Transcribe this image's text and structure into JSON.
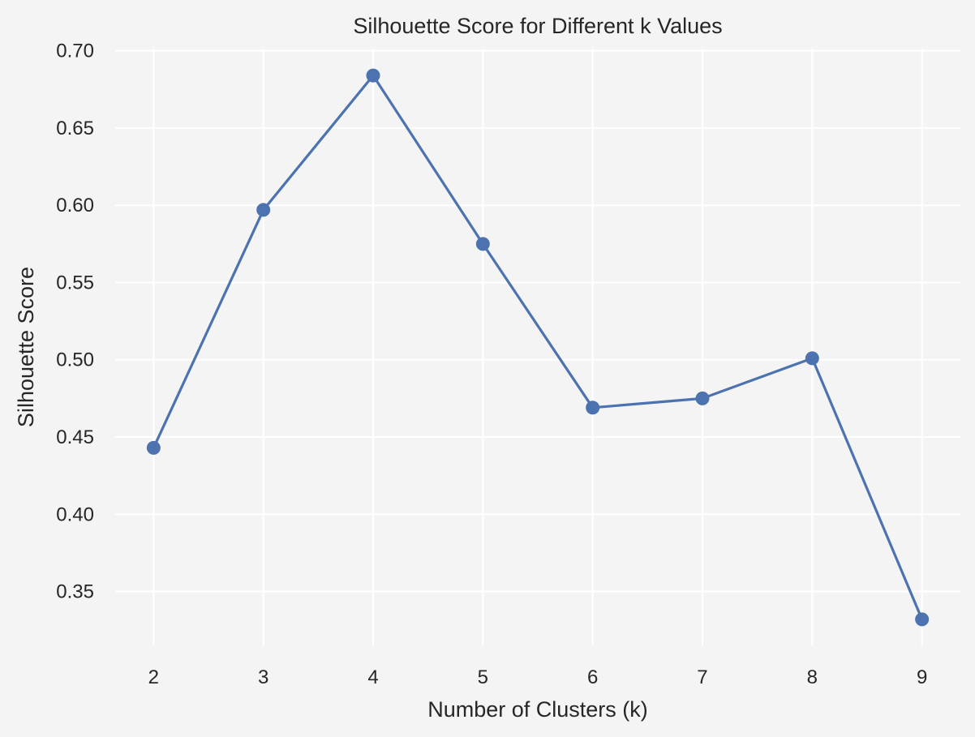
{
  "chart_data": {
    "type": "line",
    "title": "Silhouette Score for Different k Values",
    "xlabel": "Number of Clusters (k)",
    "ylabel": "Silhouette Score",
    "x": [
      2,
      3,
      4,
      5,
      6,
      7,
      8,
      9
    ],
    "series": [
      {
        "values": [
          0.443,
          0.597,
          0.684,
          0.575,
          0.469,
          0.475,
          0.501,
          0.332
        ]
      }
    ],
    "x_ticks": [
      "2",
      "3",
      "4",
      "5",
      "6",
      "7",
      "8",
      "9"
    ],
    "y_ticks": [
      "0.35",
      "0.40",
      "0.45",
      "0.50",
      "0.55",
      "0.60",
      "0.65",
      "0.70"
    ],
    "xlim": [
      1.65,
      9.35
    ],
    "ylim": [
      0.3146,
      0.7014
    ],
    "grid": true,
    "legend": "none",
    "marker": "circle",
    "colors": {
      "line": "#4c72b0",
      "plot_background": "#f4f4f4",
      "grid": "#ffffff"
    }
  }
}
